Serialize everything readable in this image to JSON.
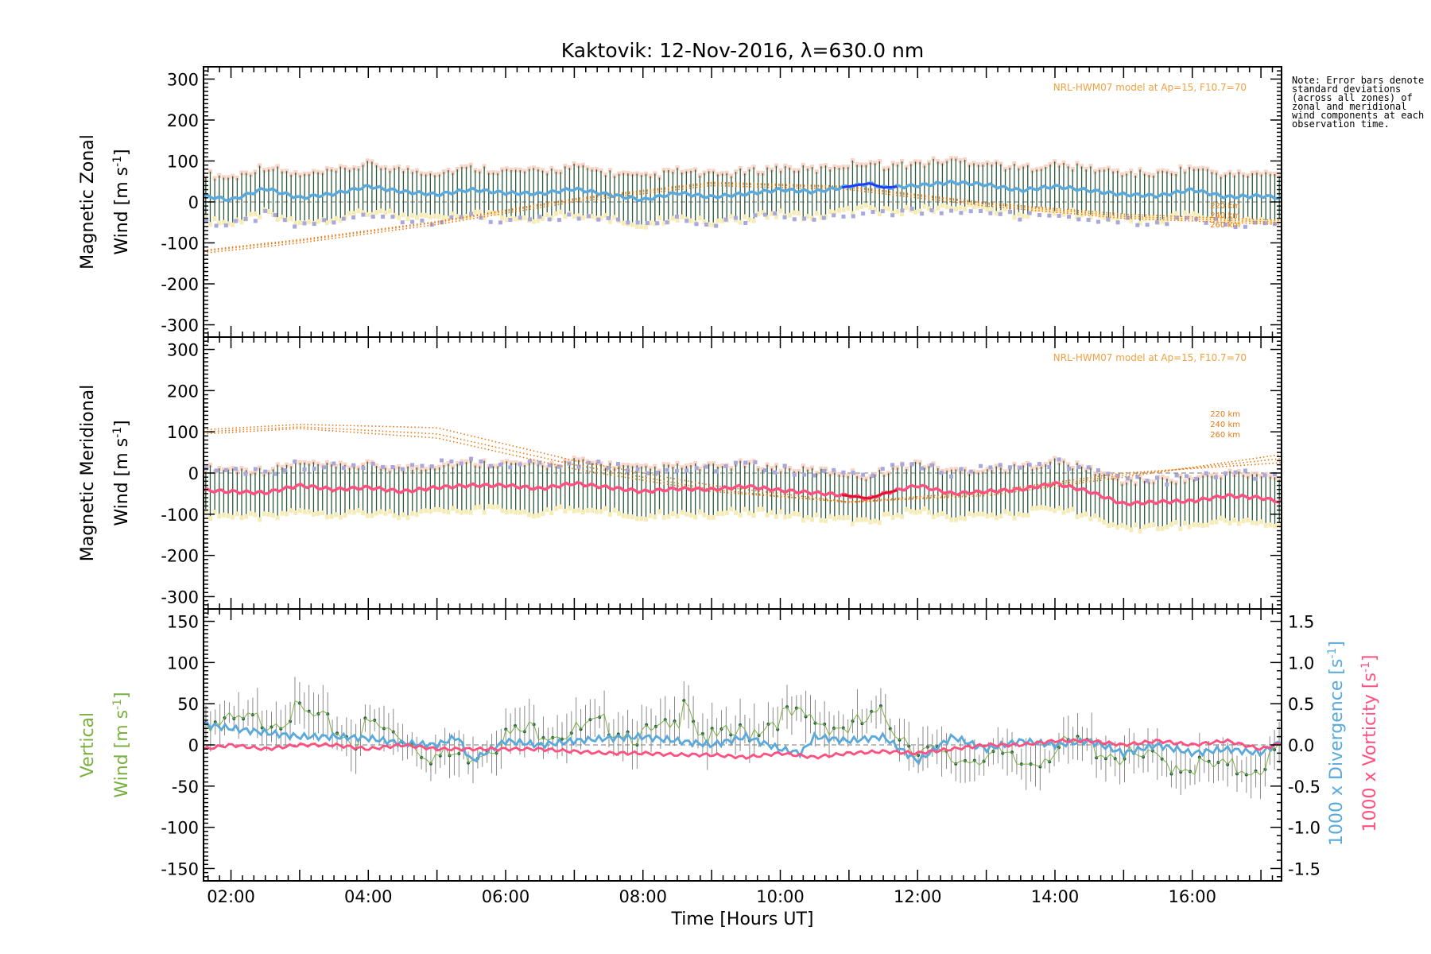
{
  "chart_data": {
    "type": "line",
    "title": "Kaktovik: 12-Nov-2016, λ=630.0 nm",
    "xlabel": "Time [Hours UT]",
    "x_range_hours": [
      1.6,
      17.3
    ],
    "x_ticks": [
      {
        "value": 2,
        "label": "02:00"
      },
      {
        "value": 4,
        "label": "04:00"
      },
      {
        "value": 6,
        "label": "06:00"
      },
      {
        "value": 8,
        "label": "08:00"
      },
      {
        "value": 10,
        "label": "10:00"
      },
      {
        "value": 12,
        "label": "12:00"
      },
      {
        "value": 14,
        "label": "14:00"
      },
      {
        "value": 16,
        "label": "16:00"
      }
    ],
    "note": "Note: Error bars denote standard deviations (across all zones) of zonal and meridional wind components at each observation time.",
    "colors": {
      "zonal_mean": "#5aa9dc",
      "zonal_mean_dark": "#1e3cff",
      "meridional_mean": "#ff5080",
      "meridional_mean_dark": "#e0102a",
      "model": "#e87810",
      "model_label": "#f0a040",
      "error_bar": "#2a5a3a",
      "error_fill_upper": "#f8c8b8",
      "error_fill_lower": "#f5eab0",
      "scatter": "#a8a8dc",
      "vertical": "#7ab040",
      "divergence": "#5aa9dc",
      "vorticity": "#ff5080"
    },
    "panels": [
      {
        "id": "zonal",
        "ylabel_line1": "Magnetic Zonal",
        "ylabel_line2": "Wind [m s",
        "ylabel_sup": "-1",
        "ylabel_close": "]",
        "ylim": [
          -330,
          330
        ],
        "yticks": [
          300,
          200,
          100,
          0,
          -100,
          -200,
          -300
        ],
        "model_label": "NRL-HWM07 model at Ap=15, F10.7=70",
        "model_altitudes": [
          "220 km",
          "240 km",
          "260 km"
        ],
        "mean_series": {
          "name": "mean",
          "x": [
            1.6,
            2.0,
            2.5,
            3.0,
            3.5,
            4.0,
            4.5,
            5.0,
            5.5,
            6.0,
            6.5,
            7.0,
            7.5,
            8.0,
            8.5,
            9.0,
            9.5,
            10.0,
            10.5,
            11.0,
            11.3,
            11.5,
            12.0,
            12.5,
            13.0,
            13.5,
            14.0,
            14.5,
            15.0,
            15.5,
            16.0,
            16.5,
            17.0,
            17.3
          ],
          "y": [
            15,
            5,
            33,
            10,
            20,
            38,
            25,
            18,
            30,
            22,
            20,
            32,
            18,
            5,
            22,
            12,
            20,
            30,
            25,
            38,
            45,
            35,
            40,
            48,
            42,
            28,
            38,
            28,
            18,
            15,
            30,
            12,
            15,
            10
          ]
        },
        "model_series": [
          {
            "name": "220 km",
            "x": [
              1.6,
              3,
              5,
              7,
              9,
              11,
              13,
              15,
              17.3
            ],
            "y": [
              -125,
              -100,
              -55,
              0,
              40,
              30,
              -10,
              -40,
              -55
            ]
          },
          {
            "name": "240 km",
            "x": [
              1.6,
              3,
              5,
              7,
              9,
              11,
              13,
              15,
              17.3
            ],
            "y": [
              -120,
              -95,
              -50,
              5,
              45,
              35,
              -5,
              -35,
              -50
            ]
          },
          {
            "name": "260 km",
            "x": [
              1.6,
              3,
              5,
              7,
              9,
              11,
              13,
              15,
              17.3
            ],
            "y": [
              -118,
              -92,
              -48,
              8,
              48,
              38,
              -2,
              -30,
              -45
            ]
          }
        ]
      },
      {
        "id": "meridional",
        "ylabel_line1": "Magnetic Meridional",
        "ylabel_line2": "Wind [m s",
        "ylabel_sup": "-1",
        "ylabel_close": "]",
        "ylim": [
          -330,
          330
        ],
        "yticks": [
          300,
          200,
          100,
          0,
          -100,
          -200,
          -300
        ],
        "model_label": "NRL-HWM07 model at Ap=15, F10.7=70",
        "model_altitudes": [
          "220 km",
          "240 km",
          "260 km"
        ],
        "mean_series": {
          "name": "mean",
          "x": [
            1.6,
            2.0,
            2.5,
            3.0,
            3.5,
            4.0,
            4.5,
            5.0,
            5.5,
            6.0,
            6.5,
            7.0,
            7.5,
            8.0,
            8.5,
            9.0,
            9.5,
            10.0,
            10.5,
            11.0,
            11.3,
            11.5,
            12.0,
            12.5,
            13.0,
            13.5,
            14.0,
            14.5,
            15.0,
            15.5,
            16.0,
            16.5,
            17.0,
            17.3
          ],
          "y": [
            -42,
            -45,
            -48,
            -30,
            -40,
            -35,
            -45,
            -35,
            -30,
            -30,
            -38,
            -25,
            -35,
            -45,
            -38,
            -40,
            -32,
            -42,
            -48,
            -55,
            -62,
            -50,
            -30,
            -50,
            -45,
            -40,
            -25,
            -45,
            -75,
            -70,
            -68,
            -55,
            -60,
            -70
          ]
        },
        "model_series": [
          {
            "name": "220 km",
            "x": [
              1.6,
              3,
              5,
              7,
              9,
              11,
              13,
              15,
              17.3
            ],
            "y": [
              105,
              118,
              110,
              30,
              -30,
              -70,
              -55,
              -10,
              45
            ]
          },
          {
            "name": "240 km",
            "x": [
              1.6,
              3,
              5,
              7,
              9,
              11,
              13,
              15,
              17.3
            ],
            "y": [
              100,
              112,
              95,
              20,
              -40,
              -72,
              -50,
              -5,
              35
            ]
          },
          {
            "name": "260 km",
            "x": [
              1.6,
              3,
              5,
              7,
              9,
              11,
              13,
              15,
              17.3
            ],
            "y": [
              95,
              108,
              85,
              10,
              -45,
              -70,
              -45,
              0,
              25
            ]
          }
        ]
      },
      {
        "id": "vertical",
        "ylabel_line1": "Vertical",
        "ylabel_line2": "Wind [m s",
        "ylabel_sup": "-1",
        "ylabel_close": "]",
        "ylim": [
          -165,
          165
        ],
        "yticks": [
          150,
          100,
          50,
          0,
          -50,
          -100,
          -150
        ],
        "y2lim": [
          -1.65,
          1.65
        ],
        "y2ticks": [
          1.5,
          1.0,
          0.5,
          0.0,
          -0.5,
          -1.0,
          -1.5
        ],
        "y2label_div": "1000 x Divergence [s",
        "y2label_vor": "1000 x Vorticity [s",
        "y2label_sup": "-1",
        "y2label_close": "]",
        "vertical_series": {
          "name": "vertical",
          "x": [
            1.6,
            2.0,
            2.5,
            3.0,
            3.5,
            3.8,
            4.0,
            4.5,
            5.0,
            5.5,
            6.0,
            6.5,
            7.0,
            7.5,
            8.0,
            8.5,
            8.6,
            8.8,
            9.0,
            9.5,
            10.0,
            10.5,
            11.0,
            11.5,
            12.0,
            12.5,
            13.0,
            13.5,
            14.0,
            14.5,
            15.0,
            15.5,
            16.0,
            16.5,
            17.0,
            17.3
          ],
          "y": [
            30,
            25,
            30,
            40,
            20,
            5,
            25,
            10,
            -15,
            -10,
            10,
            20,
            15,
            25,
            10,
            20,
            70,
            20,
            5,
            15,
            35,
            30,
            20,
            35,
            -5,
            -20,
            -10,
            -25,
            -5,
            0,
            -15,
            -20,
            -25,
            -30,
            -25,
            -5
          ]
        },
        "divergence_series": {
          "name": "divergence",
          "x": [
            1.6,
            2.0,
            2.5,
            3.0,
            3.5,
            4.0,
            4.5,
            5.0,
            5.3,
            5.5,
            6.0,
            6.5,
            7.0,
            7.5,
            8.0,
            8.5,
            9.0,
            9.5,
            10.0,
            10.3,
            10.5,
            11.0,
            11.5,
            12.0,
            12.5,
            13.0,
            13.5,
            14.0,
            14.5,
            15.0,
            15.5,
            16.0,
            16.5,
            17.0,
            17.3
          ],
          "y": [
            0.25,
            0.2,
            0.15,
            0.1,
            0.1,
            0.08,
            0.02,
            0.0,
            0.1,
            -0.2,
            0.05,
            0.0,
            0.05,
            0.08,
            0.1,
            0.05,
            0.0,
            0.1,
            -0.05,
            -0.1,
            0.1,
            0.05,
            0.1,
            -0.2,
            0.1,
            -0.05,
            0.05,
            0.0,
            0.05,
            -0.1,
            0.0,
            -0.1,
            -0.05,
            -0.1,
            0.05
          ]
        },
        "vorticity_series": {
          "name": "vorticity",
          "x": [
            1.6,
            2.0,
            2.5,
            3.0,
            3.5,
            4.0,
            4.5,
            5.0,
            5.5,
            6.0,
            6.5,
            7.0,
            7.5,
            8.0,
            8.5,
            9.0,
            9.5,
            10.0,
            10.5,
            11.0,
            11.5,
            12.0,
            12.5,
            13.0,
            13.5,
            14.0,
            14.5,
            15.0,
            15.5,
            16.0,
            16.5,
            17.0,
            17.3
          ],
          "y": [
            -0.05,
            0.0,
            -0.05,
            0.0,
            0.0,
            -0.05,
            0.0,
            -0.05,
            -0.05,
            -0.05,
            -0.05,
            -0.08,
            -0.1,
            -0.1,
            -0.12,
            -0.12,
            -0.15,
            -0.1,
            -0.15,
            -0.1,
            -0.08,
            -0.1,
            -0.05,
            0.0,
            0.0,
            0.05,
            0.05,
            0.0,
            0.05,
            0.0,
            0.05,
            -0.05,
            0.02
          ]
        }
      }
    ]
  }
}
